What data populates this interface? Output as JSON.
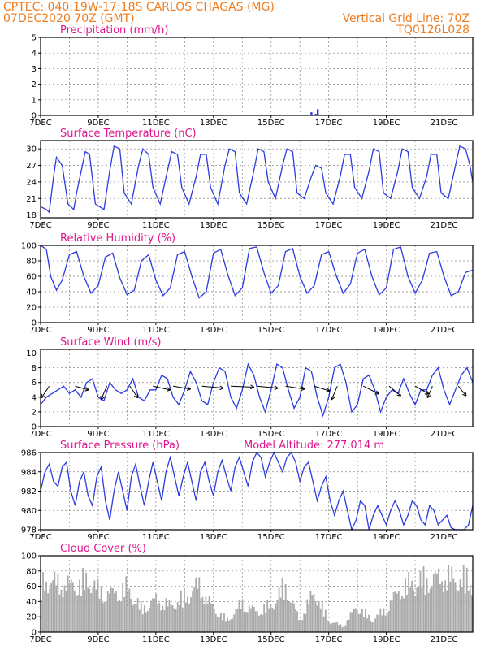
{
  "header": {
    "line1_left": "CPTEC:  040:19W-17:18S  CARLOS CHAGAS (MG)",
    "line2_left": "07DEC2020 70Z (GMT)",
    "line2_right": "Vertical Grid Line: 70Z",
    "line3_right": "TQ0126L028"
  },
  "colors": {
    "header": "#f07c1e",
    "title": "#e0168e",
    "series": "#2b3be0",
    "cloud": "#aaaaaa"
  },
  "x_ticks": [
    "7DEC",
    "9DEC",
    "11DEC",
    "13DEC",
    "15DEC",
    "17DEC",
    "19DEC",
    "21DEC"
  ],
  "chart_data": [
    {
      "type": "bar",
      "title": "Precipitation (mm/h)",
      "xlim": [
        0,
        15
      ],
      "ylim": [
        0,
        5
      ],
      "yticks": [
        0,
        1,
        2,
        3,
        4,
        5
      ],
      "x": [
        9.4,
        9.55,
        9.62
      ],
      "values": [
        0.2,
        0.1,
        0.4
      ]
    },
    {
      "type": "line",
      "title": "Surface Temperature (nC)",
      "xlim": [
        0,
        15
      ],
      "ylim": [
        17.5,
        31.5
      ],
      "yticks": [
        18,
        21,
        24,
        27,
        30
      ],
      "x": [
        0,
        0.2,
        0.3,
        0.45,
        0.55,
        0.75,
        0.95,
        1.15,
        1.25,
        1.55,
        1.7,
        1.9,
        2.2,
        2.4,
        2.55,
        2.75,
        2.9,
        3.15,
        3.4,
        3.55,
        3.75,
        3.9,
        4.15,
        4.4,
        4.55,
        4.75,
        4.9,
        5.15,
        5.4,
        5.55,
        5.75,
        5.9,
        6.15,
        6.4,
        6.55,
        6.75,
        6.9,
        7.15,
        7.4,
        7.55,
        7.75,
        7.9,
        8.15,
        8.4,
        8.55,
        8.75,
        8.9,
        9.15,
        9.4,
        9.55,
        9.75,
        9.9,
        10.15,
        10.4,
        10.55,
        10.75,
        10.9,
        11.15,
        11.4,
        11.55,
        11.75,
        11.9,
        12.15,
        12.4,
        12.55,
        12.75,
        12.9,
        13.15,
        13.4,
        13.55,
        13.75,
        13.9,
        14.15,
        14.4,
        14.55,
        14.75,
        14.9,
        15
      ],
      "values": [
        19.5,
        19,
        18.5,
        25,
        28.5,
        27,
        20,
        19,
        22,
        29.5,
        29,
        20,
        19,
        26,
        30.5,
        30,
        22,
        20,
        27,
        30,
        29,
        23,
        20,
        26,
        29.5,
        29,
        23,
        20,
        25,
        29,
        29,
        23,
        20,
        27,
        30,
        29.5,
        22,
        20,
        26,
        30,
        29.5,
        24,
        21,
        27,
        30,
        29.5,
        22,
        21,
        25,
        27,
        26.5,
        22,
        20,
        25,
        29,
        29,
        23,
        21,
        26,
        30,
        29.5,
        22,
        21,
        26,
        30,
        29.5,
        23,
        21,
        25,
        29,
        29,
        22,
        21,
        27,
        30.5,
        30,
        27,
        24
      ]
    },
    {
      "type": "line",
      "title": "Relative Humidity (%)",
      "xlim": [
        0,
        15
      ],
      "ylim": [
        0,
        100
      ],
      "yticks": [
        0,
        20,
        40,
        60,
        80,
        100
      ],
      "x": [
        0,
        0.2,
        0.35,
        0.55,
        0.75,
        1.0,
        1.25,
        1.5,
        1.75,
        2.0,
        2.25,
        2.5,
        2.75,
        3.0,
        3.25,
        3.5,
        3.75,
        4.0,
        4.25,
        4.5,
        4.75,
        5.0,
        5.25,
        5.5,
        5.75,
        6.0,
        6.25,
        6.5,
        6.75,
        7.0,
        7.25,
        7.5,
        7.75,
        8.0,
        8.25,
        8.5,
        8.75,
        9.0,
        9.25,
        9.5,
        9.75,
        10.0,
        10.25,
        10.5,
        10.75,
        11.0,
        11.25,
        11.5,
        11.75,
        12.0,
        12.25,
        12.5,
        12.75,
        13.0,
        13.25,
        13.5,
        13.75,
        14.0,
        14.25,
        14.5,
        14.75,
        15
      ],
      "values": [
        100,
        95,
        60,
        42,
        55,
        88,
        92,
        60,
        38,
        48,
        85,
        90,
        58,
        36,
        42,
        80,
        88,
        55,
        35,
        45,
        88,
        92,
        60,
        32,
        40,
        90,
        95,
        62,
        35,
        45,
        96,
        98,
        65,
        38,
        48,
        92,
        96,
        60,
        38,
        48,
        88,
        92,
        62,
        38,
        50,
        90,
        95,
        60,
        36,
        45,
        95,
        98,
        60,
        38,
        55,
        90,
        92,
        60,
        35,
        40,
        65,
        68
      ]
    },
    {
      "type": "line",
      "title": "Surface Wind (m/s)",
      "xlim": [
        0,
        15
      ],
      "ylim": [
        0,
        10.5
      ],
      "yticks": [
        0,
        2,
        4,
        6,
        8,
        10
      ],
      "x": [
        0,
        0.2,
        0.4,
        0.6,
        0.8,
        1.0,
        1.2,
        1.4,
        1.6,
        1.8,
        2.0,
        2.2,
        2.4,
        2.6,
        2.8,
        3.0,
        3.2,
        3.4,
        3.6,
        3.8,
        4.0,
        4.2,
        4.4,
        4.6,
        4.8,
        5.0,
        5.2,
        5.4,
        5.6,
        5.8,
        6.0,
        6.2,
        6.4,
        6.6,
        6.8,
        7.0,
        7.2,
        7.4,
        7.6,
        7.8,
        8.0,
        8.2,
        8.4,
        8.6,
        8.8,
        9.0,
        9.2,
        9.4,
        9.6,
        9.8,
        10.0,
        10.2,
        10.4,
        10.6,
        10.8,
        11.0,
        11.2,
        11.4,
        11.6,
        11.8,
        12.0,
        12.2,
        12.4,
        12.6,
        12.8,
        13.0,
        13.2,
        13.4,
        13.6,
        13.8,
        14.0,
        14.2,
        14.4,
        14.6,
        14.8,
        15
      ],
      "values": [
        3,
        4,
        4.5,
        5,
        5.5,
        4.5,
        5,
        4,
        6,
        6.5,
        4,
        3.5,
        6,
        5,
        4.5,
        5,
        6.5,
        4,
        3.5,
        5,
        5,
        7,
        6.5,
        4,
        3,
        5,
        7.5,
        6,
        3.5,
        3,
        6,
        8,
        7.5,
        4,
        2.5,
        5,
        8.5,
        7,
        4,
        2,
        5,
        8.5,
        8,
        5,
        2.5,
        4,
        8,
        7.5,
        4,
        1.5,
        4,
        8,
        8.5,
        6,
        2,
        3,
        6.5,
        7,
        5,
        2,
        4,
        5,
        4.5,
        6.5,
        4.5,
        3,
        5,
        5,
        7,
        8,
        5,
        3,
        5,
        7,
        8,
        6
      ],
      "wind_vectors": [
        {
          "x": 0.3,
          "u": -0.8,
          "v": -1.2
        },
        {
          "x": 1.2,
          "u": 1.4,
          "v": -0.4
        },
        {
          "x": 2.3,
          "u": -0.6,
          "v": -1.4
        },
        {
          "x": 3.1,
          "u": 0.8,
          "v": -1.2
        },
        {
          "x": 3.9,
          "u": 1.8,
          "v": -0.4
        },
        {
          "x": 4.6,
          "u": 1.8,
          "v": -0.3
        },
        {
          "x": 5.6,
          "u": 2.2,
          "v": -0.2
        },
        {
          "x": 6.6,
          "u": 2.4,
          "v": -0.1
        },
        {
          "x": 7.5,
          "u": 2.2,
          "v": -0.2
        },
        {
          "x": 8.5,
          "u": 2.0,
          "v": -0.3
        },
        {
          "x": 9.5,
          "u": 1.6,
          "v": -0.5
        },
        {
          "x": 10.3,
          "u": -0.6,
          "v": -1.4
        },
        {
          "x": 11.2,
          "u": 1.6,
          "v": -0.8
        },
        {
          "x": 12.1,
          "u": 1.2,
          "v": -1.0
        },
        {
          "x": 13.0,
          "u": 1.4,
          "v": -0.8
        },
        {
          "x": 13.6,
          "u": -0.5,
          "v": -1.2
        },
        {
          "x": 14.5,
          "u": 0.8,
          "v": -1.0
        }
      ]
    },
    {
      "type": "line",
      "title": "Surface Pressure (hPa)",
      "annotation": "Model Altitude: 277.014 m",
      "xlim": [
        0,
        15
      ],
      "ylim": [
        978,
        986
      ],
      "yticks": [
        978,
        980,
        982,
        984,
        986
      ],
      "x": [
        0,
        0.15,
        0.3,
        0.45,
        0.6,
        0.75,
        0.9,
        1.05,
        1.2,
        1.35,
        1.5,
        1.65,
        1.8,
        1.95,
        2.1,
        2.25,
        2.4,
        2.55,
        2.7,
        2.85,
        3.0,
        3.15,
        3.3,
        3.45,
        3.6,
        3.75,
        3.9,
        4.05,
        4.2,
        4.35,
        4.5,
        4.65,
        4.8,
        4.95,
        5.1,
        5.25,
        5.4,
        5.55,
        5.7,
        5.85,
        6.0,
        6.15,
        6.3,
        6.45,
        6.6,
        6.75,
        6.9,
        7.05,
        7.2,
        7.35,
        7.5,
        7.65,
        7.8,
        7.95,
        8.1,
        8.25,
        8.4,
        8.55,
        8.7,
        8.85,
        9.0,
        9.15,
        9.3,
        9.45,
        9.6,
        9.75,
        9.9,
        10.05,
        10.2,
        10.35,
        10.5,
        10.65,
        10.8,
        10.95,
        11.1,
        11.25,
        11.4,
        11.55,
        11.7,
        11.85,
        12.0,
        12.15,
        12.3,
        12.45,
        12.6,
        12.75,
        12.9,
        13.05,
        13.2,
        13.35,
        13.5,
        13.65,
        13.8,
        13.95,
        14.1,
        14.25,
        14.4,
        14.55,
        14.7,
        14.85,
        15
      ],
      "values": [
        982,
        984,
        984.8,
        983,
        982.5,
        984.5,
        985,
        982,
        980.5,
        983,
        984,
        981.5,
        980.5,
        983.5,
        984.5,
        981,
        979,
        982,
        984,
        982,
        980,
        983.5,
        984.8,
        982.5,
        980.5,
        983,
        985,
        983,
        981,
        984,
        985.5,
        983.5,
        981.5,
        983.5,
        985,
        983,
        981,
        984,
        985,
        983,
        981.5,
        984,
        985.2,
        983.5,
        982,
        984.5,
        985.5,
        984,
        982.5,
        985,
        986,
        985.5,
        983.5,
        985,
        986,
        985,
        984,
        985.5,
        986,
        985,
        983,
        984.5,
        985,
        983,
        981,
        982.5,
        983.5,
        981,
        979.5,
        981,
        982,
        980,
        978,
        979,
        981,
        980.5,
        978,
        979.5,
        980.5,
        979.5,
        978.5,
        980,
        981,
        980,
        978.5,
        979.5,
        981,
        980.5,
        979,
        978.5,
        980.5,
        980,
        978.5,
        979,
        979.5,
        978.2,
        978,
        978,
        978,
        978.5,
        980.5
      ]
    },
    {
      "type": "bar",
      "title": "Cloud Cover (%)",
      "xlim": [
        0,
        15
      ],
      "ylim": [
        0,
        100
      ],
      "yticks": [
        0,
        20,
        40,
        60,
        80,
        100
      ],
      "profile_x": [
        0,
        0.2,
        0.5,
        1.0,
        1.5,
        1.8,
        2.0,
        2.5,
        3.0,
        3.5,
        4.0,
        4.5,
        5.0,
        5.5,
        6.0,
        6.5,
        7.0,
        7.5,
        8.0,
        8.5,
        9.0,
        9.5,
        10.0,
        10.5,
        11.0,
        11.5,
        12.0,
        12.5,
        13.0,
        13.5,
        14.0,
        14.5,
        15
      ],
      "profile_values": [
        75,
        90,
        85,
        80,
        85,
        88,
        70,
        65,
        75,
        40,
        55,
        45,
        60,
        80,
        40,
        20,
        50,
        35,
        45,
        80,
        20,
        70,
        20,
        10,
        45,
        20,
        40,
        75,
        85,
        90,
        95,
        90,
        88
      ]
    }
  ]
}
